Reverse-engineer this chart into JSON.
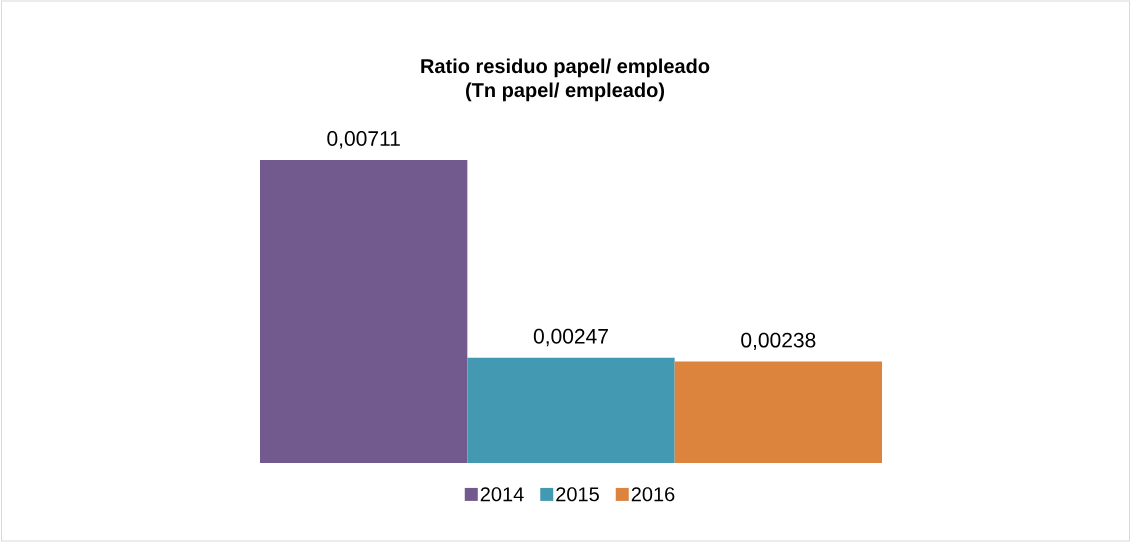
{
  "chart_data": {
    "type": "bar",
    "title": "Ratio residuo papel/ empleado",
    "subtitle": "(Tn papel/ empleado)",
    "categories": [
      null
    ],
    "series": [
      {
        "name": "2014",
        "color": "#725a8f",
        "values": [
          0.00711
        ],
        "value_labels": [
          "0,00711"
        ]
      },
      {
        "name": "2015",
        "color": "#4399b1",
        "values": [
          0.00247
        ],
        "value_labels": [
          "0,00247"
        ]
      },
      {
        "name": "2016",
        "color": "#dc833e",
        "values": [
          0.00238
        ],
        "value_labels": [
          "0,00238"
        ]
      }
    ],
    "legend": "bottom"
  }
}
